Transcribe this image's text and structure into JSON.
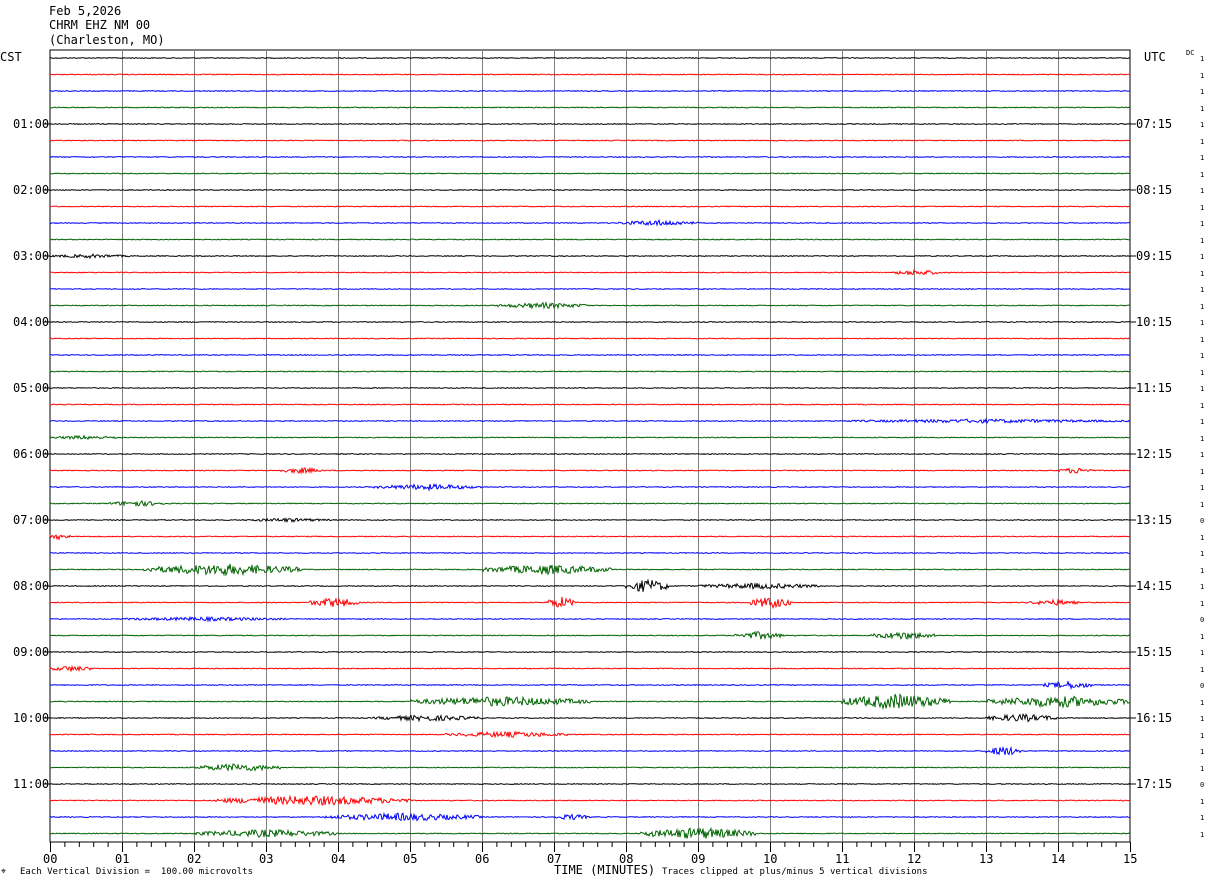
{
  "header": {
    "date": "Feb 5,2026",
    "station": "CHRM EHZ NM 00",
    "location": "(Charleston, MO)"
  },
  "left_timezone": "CST",
  "right_timezone": "UTC",
  "dc_label": "DC",
  "footer": {
    "scale_note": "Each Vertical Division =  100.00 microvolts",
    "clip_note": "Traces clipped at plus/minus 5 vertical divisions",
    "corner_mark": "⌖"
  },
  "colors": {
    "black": "#000000",
    "red": "#ff0000",
    "blue": "#0000ff",
    "green": "#006400",
    "grid": "#808080"
  },
  "chart_data": {
    "type": "line",
    "xlabel": "TIME (MINUTES)",
    "xlim": [
      0,
      15
    ],
    "x_ticks": [
      "00",
      "01",
      "02",
      "03",
      "04",
      "05",
      "06",
      "07",
      "08",
      "09",
      "10",
      "11",
      "12",
      "13",
      "14",
      "15"
    ],
    "left_hour_labels": [
      "01:00",
      "02:00",
      "03:00",
      "04:00",
      "05:00",
      "06:00",
      "07:00",
      "08:00",
      "09:00",
      "10:00",
      "11:00"
    ],
    "right_hour_labels": [
      "07:15",
      "08:15",
      "09:15",
      "10:15",
      "11:15",
      "12:15",
      "13:15",
      "14:15",
      "15:15",
      "16:15",
      "17:15"
    ],
    "trace_count": 48,
    "trace_color_cycle": [
      "black",
      "red",
      "blue",
      "green"
    ],
    "dc_values": [
      "1",
      "1",
      "1",
      "1",
      "1",
      "1",
      "1",
      "1",
      "1",
      "1",
      "1",
      "1",
      "1",
      "1",
      "1",
      "1",
      "1",
      "1",
      "1",
      "1",
      "1",
      "1",
      "1",
      "1",
      "1",
      "1",
      "1",
      "1",
      "0",
      "1",
      "1",
      "1",
      "1",
      "1",
      "0",
      "1",
      "1",
      "1",
      "0",
      "1",
      "1",
      "1",
      "1",
      "1",
      "0",
      "1",
      "1",
      "1"
    ],
    "events": [
      {
        "trace": 10,
        "start_min": 7.9,
        "end_min": 9.0,
        "amplitude": 3
      },
      {
        "trace": 12,
        "start_min": 0.0,
        "end_min": 1.1,
        "amplitude": 2
      },
      {
        "trace": 13,
        "start_min": 11.7,
        "end_min": 12.4,
        "amplitude": 3
      },
      {
        "trace": 15,
        "start_min": 6.2,
        "end_min": 7.5,
        "amplitude": 3
      },
      {
        "trace": 22,
        "start_min": 11.0,
        "end_min": 15.0,
        "amplitude": 2
      },
      {
        "trace": 23,
        "start_min": 0.0,
        "end_min": 1.0,
        "amplitude": 2
      },
      {
        "trace": 25,
        "start_min": 3.2,
        "end_min": 3.8,
        "amplitude": 3
      },
      {
        "trace": 25,
        "start_min": 14.0,
        "end_min": 14.5,
        "amplitude": 3
      },
      {
        "trace": 26,
        "start_min": 4.5,
        "end_min": 6.0,
        "amplitude": 3
      },
      {
        "trace": 27,
        "start_min": 0.8,
        "end_min": 1.6,
        "amplitude": 3
      },
      {
        "trace": 28,
        "start_min": 2.7,
        "end_min": 3.9,
        "amplitude": 2
      },
      {
        "trace": 29,
        "start_min": 0.0,
        "end_min": 0.3,
        "amplitude": 3
      },
      {
        "trace": 31,
        "start_min": 1.3,
        "end_min": 3.5,
        "amplitude": 6
      },
      {
        "trace": 31,
        "start_min": 6.0,
        "end_min": 7.8,
        "amplitude": 5
      },
      {
        "trace": 32,
        "start_min": 8.0,
        "end_min": 8.6,
        "amplitude": 7
      },
      {
        "trace": 32,
        "start_min": 9.0,
        "end_min": 10.7,
        "amplitude": 3
      },
      {
        "trace": 33,
        "start_min": 3.6,
        "end_min": 4.3,
        "amplitude": 5
      },
      {
        "trace": 33,
        "start_min": 6.9,
        "end_min": 7.3,
        "amplitude": 6
      },
      {
        "trace": 33,
        "start_min": 9.7,
        "end_min": 10.3,
        "amplitude": 6
      },
      {
        "trace": 33,
        "start_min": 13.6,
        "end_min": 14.3,
        "amplitude": 3
      },
      {
        "trace": 34,
        "start_min": 1.0,
        "end_min": 3.3,
        "amplitude": 2
      },
      {
        "trace": 35,
        "start_min": 9.5,
        "end_min": 10.2,
        "amplitude": 4
      },
      {
        "trace": 35,
        "start_min": 11.4,
        "end_min": 12.3,
        "amplitude": 4
      },
      {
        "trace": 37,
        "start_min": 0.0,
        "end_min": 0.6,
        "amplitude": 3
      },
      {
        "trace": 38,
        "start_min": 13.8,
        "end_min": 14.5,
        "amplitude": 4
      },
      {
        "trace": 39,
        "start_min": 5.0,
        "end_min": 7.5,
        "amplitude": 5
      },
      {
        "trace": 39,
        "start_min": 11.0,
        "end_min": 12.5,
        "amplitude": 8
      },
      {
        "trace": 39,
        "start_min": 13.0,
        "end_min": 15.0,
        "amplitude": 6
      },
      {
        "trace": 40,
        "start_min": 4.5,
        "end_min": 6.0,
        "amplitude": 3
      },
      {
        "trace": 40,
        "start_min": 13.0,
        "end_min": 14.0,
        "amplitude": 4
      },
      {
        "trace": 41,
        "start_min": 5.5,
        "end_min": 7.2,
        "amplitude": 3
      },
      {
        "trace": 42,
        "start_min": 13.0,
        "end_min": 13.5,
        "amplitude": 5
      },
      {
        "trace": 43,
        "start_min": 2.0,
        "end_min": 3.2,
        "amplitude": 4
      },
      {
        "trace": 45,
        "start_min": 2.3,
        "end_min": 5.0,
        "amplitude": 5
      },
      {
        "trace": 46,
        "start_min": 3.8,
        "end_min": 6.0,
        "amplitude": 4
      },
      {
        "trace": 46,
        "start_min": 7.0,
        "end_min": 7.5,
        "amplitude": 3
      },
      {
        "trace": 47,
        "start_min": 2.0,
        "end_min": 4.0,
        "amplitude": 4
      },
      {
        "trace": 47,
        "start_min": 8.2,
        "end_min": 9.8,
        "amplitude": 6
      }
    ]
  }
}
